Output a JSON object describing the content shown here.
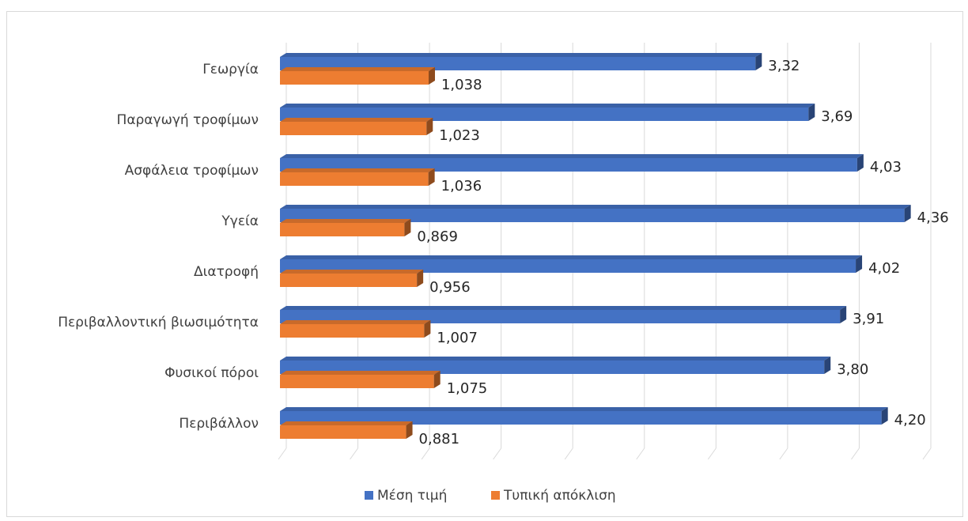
{
  "chart_data": {
    "type": "bar",
    "orientation": "horizontal",
    "style": "3d-clustered-bar",
    "categories": [
      "Γεωργία",
      "Παραγωγή τροφίμων",
      "Ασφάλεια τροφίμων",
      "Υγεία",
      "Διατροφή",
      "Περιβαλλοντική βιωσιμότητα",
      "Φυσικοί πόροι",
      "Περιβάλλον"
    ],
    "series": [
      {
        "name": "Μέση τιμή",
        "color": "#4472C4",
        "values": [
          3.32,
          3.69,
          4.03,
          4.36,
          4.02,
          3.91,
          3.8,
          4.2
        ],
        "labels": [
          "3,32",
          "3,69",
          "4,03",
          "4,36",
          "4,02",
          "3,91",
          "3,80",
          "4,20"
        ]
      },
      {
        "name": "Τυπική απόκλιση",
        "color": "#ED7D31",
        "values": [
          1.038,
          1.023,
          1.036,
          0.869,
          0.956,
          1.007,
          1.075,
          0.881
        ],
        "labels": [
          "1,038",
          "1,023",
          "1,036",
          "0,869",
          "0,956",
          "1,007",
          "1,075",
          "0,881"
        ]
      }
    ],
    "xlim": [
      0,
      4.5
    ],
    "grid": true,
    "legend_position": "bottom",
    "title": "",
    "xlabel": "",
    "ylabel": ""
  }
}
